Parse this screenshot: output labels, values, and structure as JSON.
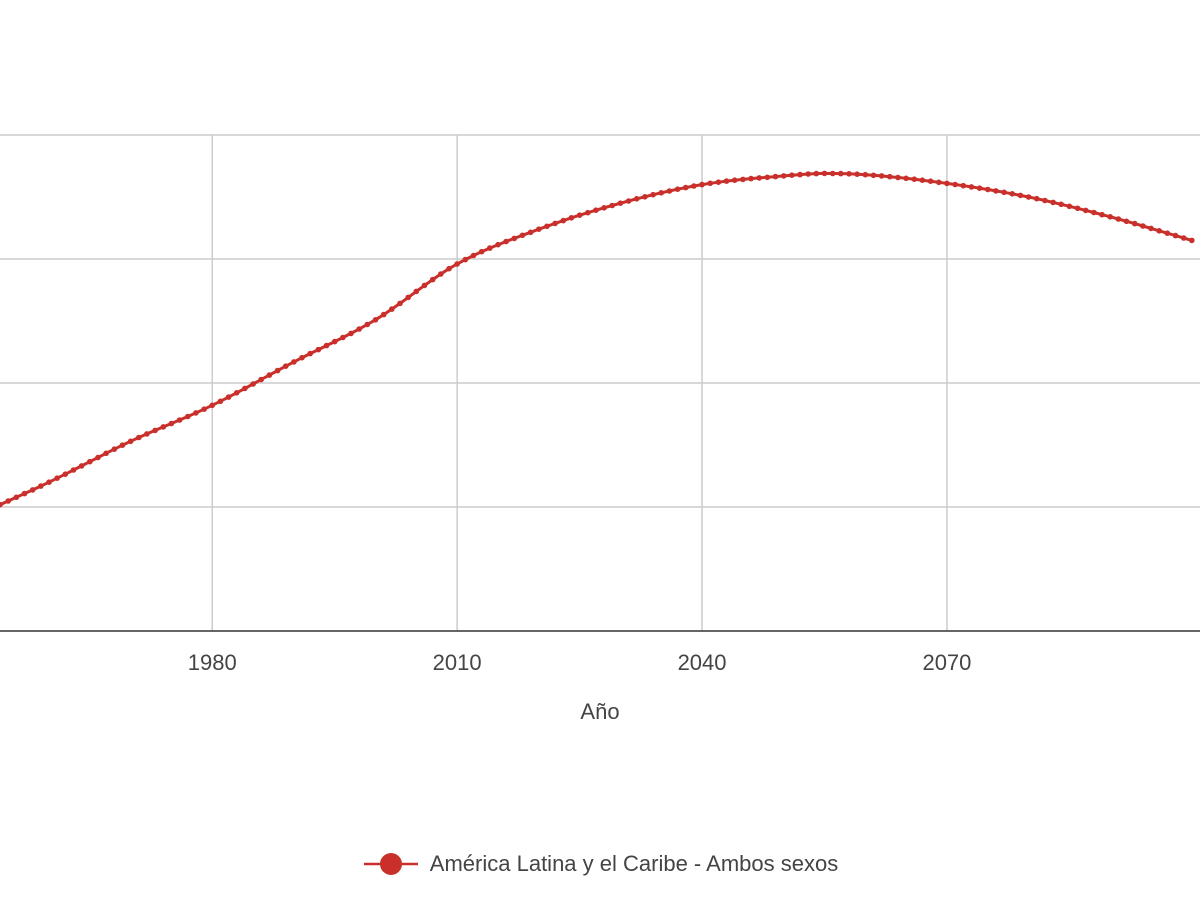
{
  "chart_data": {
    "type": "line",
    "title": "",
    "xlabel": "Año",
    "ylabel": "",
    "x_ticks": [
      1980,
      2010,
      2040,
      2070
    ],
    "xlim": [
      1954,
      2101
    ],
    "ylim": [
      0,
      4
    ],
    "y_gridlines": [
      1,
      2,
      3,
      4
    ],
    "grid": true,
    "legend_position": "bottom-center",
    "series": [
      {
        "name": "América Latina y el Caribe - Ambos sexos",
        "color": "#c9302c",
        "x": [
          1950,
          1960,
          1970,
          1980,
          1990,
          2000,
          2010,
          2020,
          2030,
          2040,
          2050,
          2055,
          2060,
          2070,
          2080,
          2090,
          2100
        ],
        "y": [
          0.9,
          1.2,
          1.53,
          1.82,
          2.17,
          2.51,
          2.96,
          3.24,
          3.45,
          3.6,
          3.67,
          3.69,
          3.68,
          3.61,
          3.5,
          3.34,
          3.15
        ]
      }
    ]
  },
  "legend": {
    "items": [
      {
        "label": "América Latina y el Caribe - Ambos sexos",
        "color": "#c9302c"
      }
    ]
  }
}
